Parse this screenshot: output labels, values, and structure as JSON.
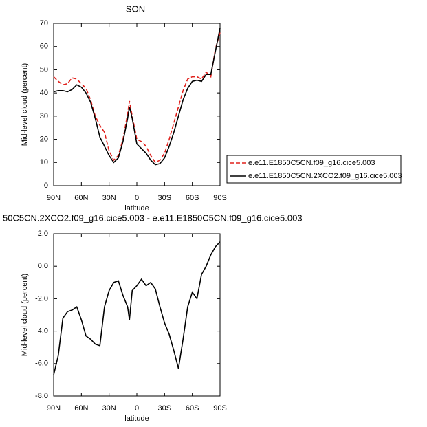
{
  "chart_data": [
    {
      "type": "line",
      "title": "SON",
      "xlabel": "latitude",
      "ylabel": "Mid-level cloud (percent)",
      "x": [
        90,
        85,
        80,
        75,
        70,
        65,
        60,
        55,
        50,
        45,
        40,
        35,
        30,
        25,
        20,
        15,
        10,
        8,
        5,
        0,
        -5,
        -10,
        -15,
        -20,
        -25,
        -30,
        -35,
        -40,
        -45,
        -50,
        -55,
        -60,
        -65,
        -70,
        -75,
        -80,
        -85,
        -90
      ],
      "series": [
        {
          "name": "e.e11.E1850C5CN.f09_g16.cice5.003",
          "color": "#e0201b",
          "dash": "dashed",
          "values": [
            47,
            45,
            43.5,
            44,
            46.5,
            46,
            44,
            42,
            37,
            30,
            26,
            23,
            15,
            11,
            13,
            20,
            31,
            36.5,
            30,
            20,
            19,
            17,
            13,
            10,
            11,
            14,
            20,
            27,
            34,
            41,
            46,
            47,
            47,
            46,
            49,
            47,
            59,
            66
          ]
        },
        {
          "name": "e.e11.E1850C5CN.2XCO2.f09_g16.cice5.003",
          "color": "#000000",
          "dash": "solid",
          "values": [
            40.5,
            41,
            41,
            40.5,
            41.5,
            43.5,
            42.5,
            40,
            36,
            29,
            21,
            17,
            13,
            10,
            12,
            19,
            29,
            34,
            29,
            18,
            16,
            14,
            11,
            9,
            9.5,
            12,
            17,
            23,
            30,
            37,
            42,
            45,
            45.5,
            45,
            48,
            48,
            58,
            68
          ]
        }
      ],
      "xlim": [
        90,
        -90
      ],
      "xticks": [
        {
          "value": 90,
          "label": "90N"
        },
        {
          "value": 60,
          "label": "60N"
        },
        {
          "value": 30,
          "label": "30N"
        },
        0,
        {
          "value": -30,
          "label": "30S"
        },
        {
          "value": -60,
          "label": "60S"
        },
        {
          "value": -90,
          "label": "90S"
        }
      ],
      "ylim": [
        0,
        70
      ],
      "yticks": [
        0,
        10,
        20,
        30,
        40,
        50,
        60,
        70
      ],
      "legend": "right"
    },
    {
      "type": "line",
      "title": "50C5CN.2XCO2.f09_g16.cice5.003 - e.e11.E1850C5CN.f09_g16.cice5.003",
      "xlabel": "latitude",
      "ylabel": "Mid-level cloud (percent)",
      "x": [
        90,
        85,
        80,
        75,
        70,
        65,
        60,
        55,
        50,
        45,
        40,
        35,
        30,
        25,
        20,
        15,
        10,
        8,
        5,
        0,
        -5,
        -10,
        -15,
        -20,
        -25,
        -30,
        -35,
        -40,
        -45,
        -50,
        -55,
        -60,
        -65,
        -70,
        -75,
        -80,
        -85,
        -90
      ],
      "color": "#000000",
      "values": [
        -6.7,
        -5.5,
        -3.2,
        -2.8,
        -2.7,
        -2.5,
        -3.3,
        -4.3,
        -4.5,
        -4.8,
        -4.9,
        -2.5,
        -1.5,
        -1.0,
        -0.9,
        -1.8,
        -2.5,
        -3.3,
        -1.5,
        -1.2,
        -0.8,
        -1.2,
        -1.0,
        -1.4,
        -2.5,
        -3.5,
        -4.2,
        -5.2,
        -6.3,
        -4.5,
        -2.5,
        -1.6,
        -2.0,
        -0.5,
        0.0,
        0.7,
        1.2,
        1.5
      ],
      "xlim": [
        90,
        -90
      ],
      "xticks": [
        {
          "value": 90,
          "label": "90N"
        },
        {
          "value": 60,
          "label": "60N"
        },
        {
          "value": 30,
          "label": "30N"
        },
        0,
        {
          "value": -30,
          "label": "30S"
        },
        {
          "value": -60,
          "label": "60S"
        },
        {
          "value": -90,
          "label": "90S"
        }
      ],
      "ylim": [
        -8,
        2
      ],
      "yticks": [
        {
          "value": -8,
          "label": "-8.0"
        },
        {
          "value": -6,
          "label": "-6.0"
        },
        {
          "value": -4,
          "label": "-4.0"
        },
        {
          "value": -2,
          "label": "-2.0"
        },
        {
          "value": 0,
          "label": "0.0"
        },
        {
          "value": 2,
          "label": "2.0"
        }
      ]
    }
  ]
}
